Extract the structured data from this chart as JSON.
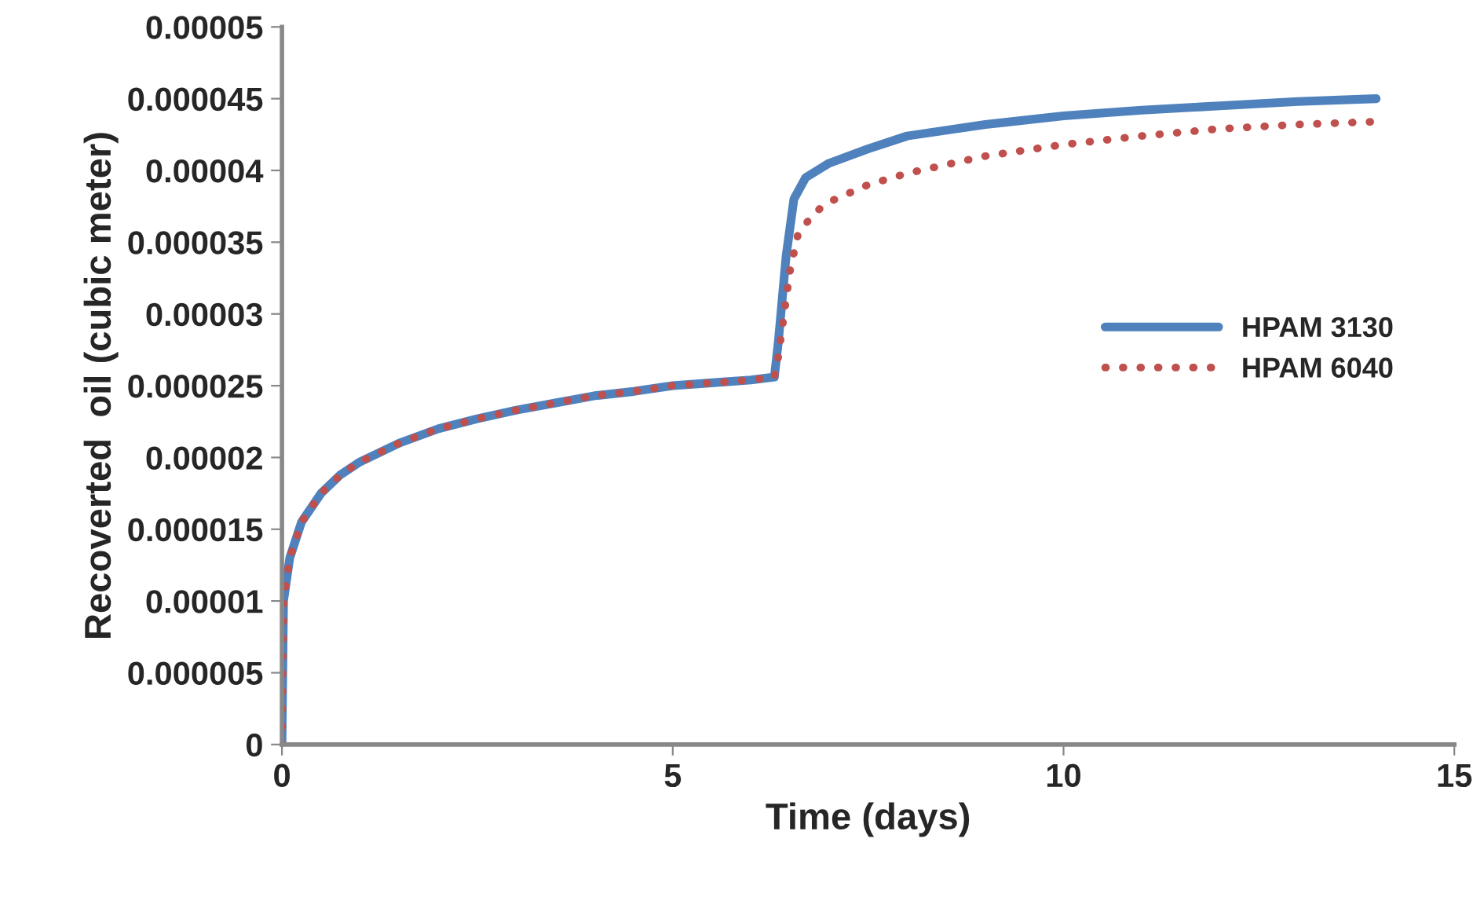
{
  "chart_data": {
    "type": "line",
    "xlabel": "Time (days)",
    "ylabel": "Recoverted  oil (cubic meter)",
    "xlim": [
      0,
      15
    ],
    "xticks": [
      0,
      5,
      10,
      15
    ],
    "ylim": [
      0,
      5e-05
    ],
    "yticks": [
      {
        "value": 0,
        "label": "0"
      },
      {
        "value": 5e-06,
        "label": "0.000005"
      },
      {
        "value": 1e-05,
        "label": "0.00001"
      },
      {
        "value": 1.5e-05,
        "label": "0.000015"
      },
      {
        "value": 2e-05,
        "label": "0.00002"
      },
      {
        "value": 2.5e-05,
        "label": "0.000025"
      },
      {
        "value": 3e-05,
        "label": "0.00003"
      },
      {
        "value": 3.5e-05,
        "label": "0.000035"
      },
      {
        "value": 4e-05,
        "label": "0.00004"
      },
      {
        "value": 4.5e-05,
        "label": "0.000045"
      },
      {
        "value": 5e-05,
        "label": "0.00005"
      }
    ],
    "grid": false,
    "legend": "center right",
    "series": [
      {
        "name": "HPAM 3130",
        "color": "#4f81bd",
        "line_style": "solid",
        "x": [
          0,
          0.02,
          0.1,
          0.25,
          0.5,
          0.75,
          1,
          1.5,
          2,
          2.5,
          3,
          3.5,
          4,
          4.5,
          5,
          5.5,
          6,
          6.3,
          6.35,
          6.45,
          6.55,
          6.7,
          7,
          7.5,
          8,
          9,
          10,
          11,
          12,
          13,
          14
        ],
        "values": [
          0,
          1e-05,
          1.3e-05,
          1.55e-05,
          1.75e-05,
          1.88e-05,
          1.97e-05,
          2.1e-05,
          2.2e-05,
          2.27e-05,
          2.33e-05,
          2.38e-05,
          2.43e-05,
          2.46e-05,
          2.5e-05,
          2.52e-05,
          2.54e-05,
          2.56e-05,
          2.8e-05,
          3.4e-05,
          3.8e-05,
          3.95e-05,
          4.05e-05,
          4.15e-05,
          4.24e-05,
          4.32e-05,
          4.38e-05,
          4.42e-05,
          4.45e-05,
          4.48e-05,
          4.5e-05
        ]
      },
      {
        "name": "HPAM 6040",
        "color": "#c0504d",
        "line_style": "dotted",
        "x": [
          0,
          0.02,
          0.1,
          0.25,
          0.5,
          0.75,
          1,
          1.5,
          2,
          2.5,
          3,
          3.5,
          4,
          4.5,
          5,
          5.5,
          6,
          6.3,
          6.35,
          6.5,
          6.6,
          6.8,
          7,
          7.5,
          8,
          9,
          10,
          11,
          12,
          13,
          14
        ],
        "values": [
          0,
          1e-05,
          1.3e-05,
          1.55e-05,
          1.75e-05,
          1.88e-05,
          1.97e-05,
          2.1e-05,
          2.2e-05,
          2.27e-05,
          2.33e-05,
          2.38e-05,
          2.43e-05,
          2.46e-05,
          2.5e-05,
          2.52e-05,
          2.54e-05,
          2.56e-05,
          2.7e-05,
          3.3e-05,
          3.55e-05,
          3.7e-05,
          3.78e-05,
          3.9e-05,
          3.98e-05,
          4.1e-05,
          4.18e-05,
          4.24e-05,
          4.29e-05,
          4.32e-05,
          4.34e-05
        ]
      }
    ]
  }
}
